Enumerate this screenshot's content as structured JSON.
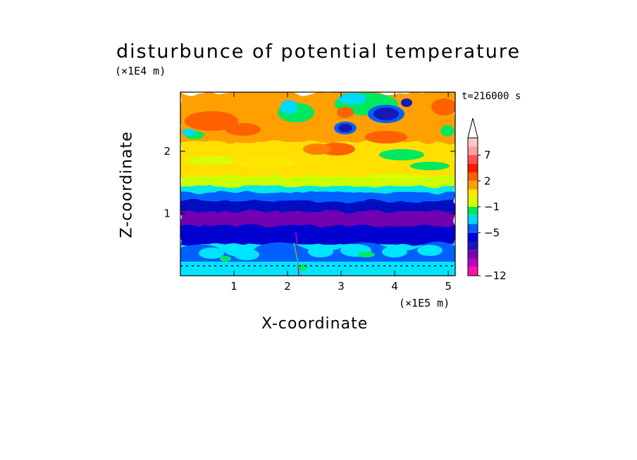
{
  "chart_data": {
    "type": "heatmap",
    "title": "disturbunce of potential temperature",
    "xlabel": "X-coordinate",
    "ylabel": "Z-coordinate",
    "x_unit": "(×1E5 m)",
    "y_unit": "(×1E4 m)",
    "time_label": "t=216000 s",
    "xlim": [
      0,
      5.13
    ],
    "ylim": [
      0,
      2.95
    ],
    "x_ticks": [
      "1",
      "2",
      "3",
      "4",
      "5"
    ],
    "x_tick_values": [
      1,
      2,
      3,
      4,
      5
    ],
    "y_ticks": [
      "1",
      "2"
    ],
    "y_tick_values": [
      1,
      2
    ],
    "grid": false,
    "colorbar": {
      "labels": [
        "7",
        "2",
        "−1",
        "−5",
        "−12"
      ],
      "label_values": [
        7,
        2,
        -1,
        -5,
        -12
      ],
      "extend": "max",
      "colors": [
        "#ff10b4",
        "#c000c0",
        "#7a00b0",
        "#1818b8",
        "#0000e0",
        "#0060ff",
        "#00d8ff",
        "#00e860",
        "#d8ff00",
        "#ffe800",
        "#ffa000",
        "#ff6000",
        "#ff1800",
        "#ff5050",
        "#ffa0a0",
        "#ffc8c8"
      ]
    },
    "layers": [
      {
        "z_range": [
          0,
          0.55
        ],
        "value": -2.5,
        "color": "#00e5ff"
      },
      {
        "z_range": [
          0.55,
          0.85
        ],
        "value": -5.5,
        "color": "#0000d0"
      },
      {
        "z_range": [
          0.85,
          1.08
        ],
        "value": -7,
        "color": "#7000b0"
      },
      {
        "z_range": [
          1.08,
          1.25
        ],
        "value": -5,
        "color": "#0010c0"
      },
      {
        "z_range": [
          1.25,
          1.38
        ],
        "value": -4,
        "color": "#0060ff"
      },
      {
        "z_range": [
          1.38,
          1.48
        ],
        "value": -1,
        "color": "#00e8e8"
      },
      {
        "z_range": [
          1.48,
          1.65
        ],
        "value": 0.5,
        "color": "#ccff00"
      },
      {
        "z_range": [
          1.65,
          2.2
        ],
        "value": 1.5,
        "color": "#ffe000"
      },
      {
        "z_range": [
          2.2,
          2.95
        ],
        "value": 2.5,
        "color": "#ffa000"
      }
    ]
  }
}
